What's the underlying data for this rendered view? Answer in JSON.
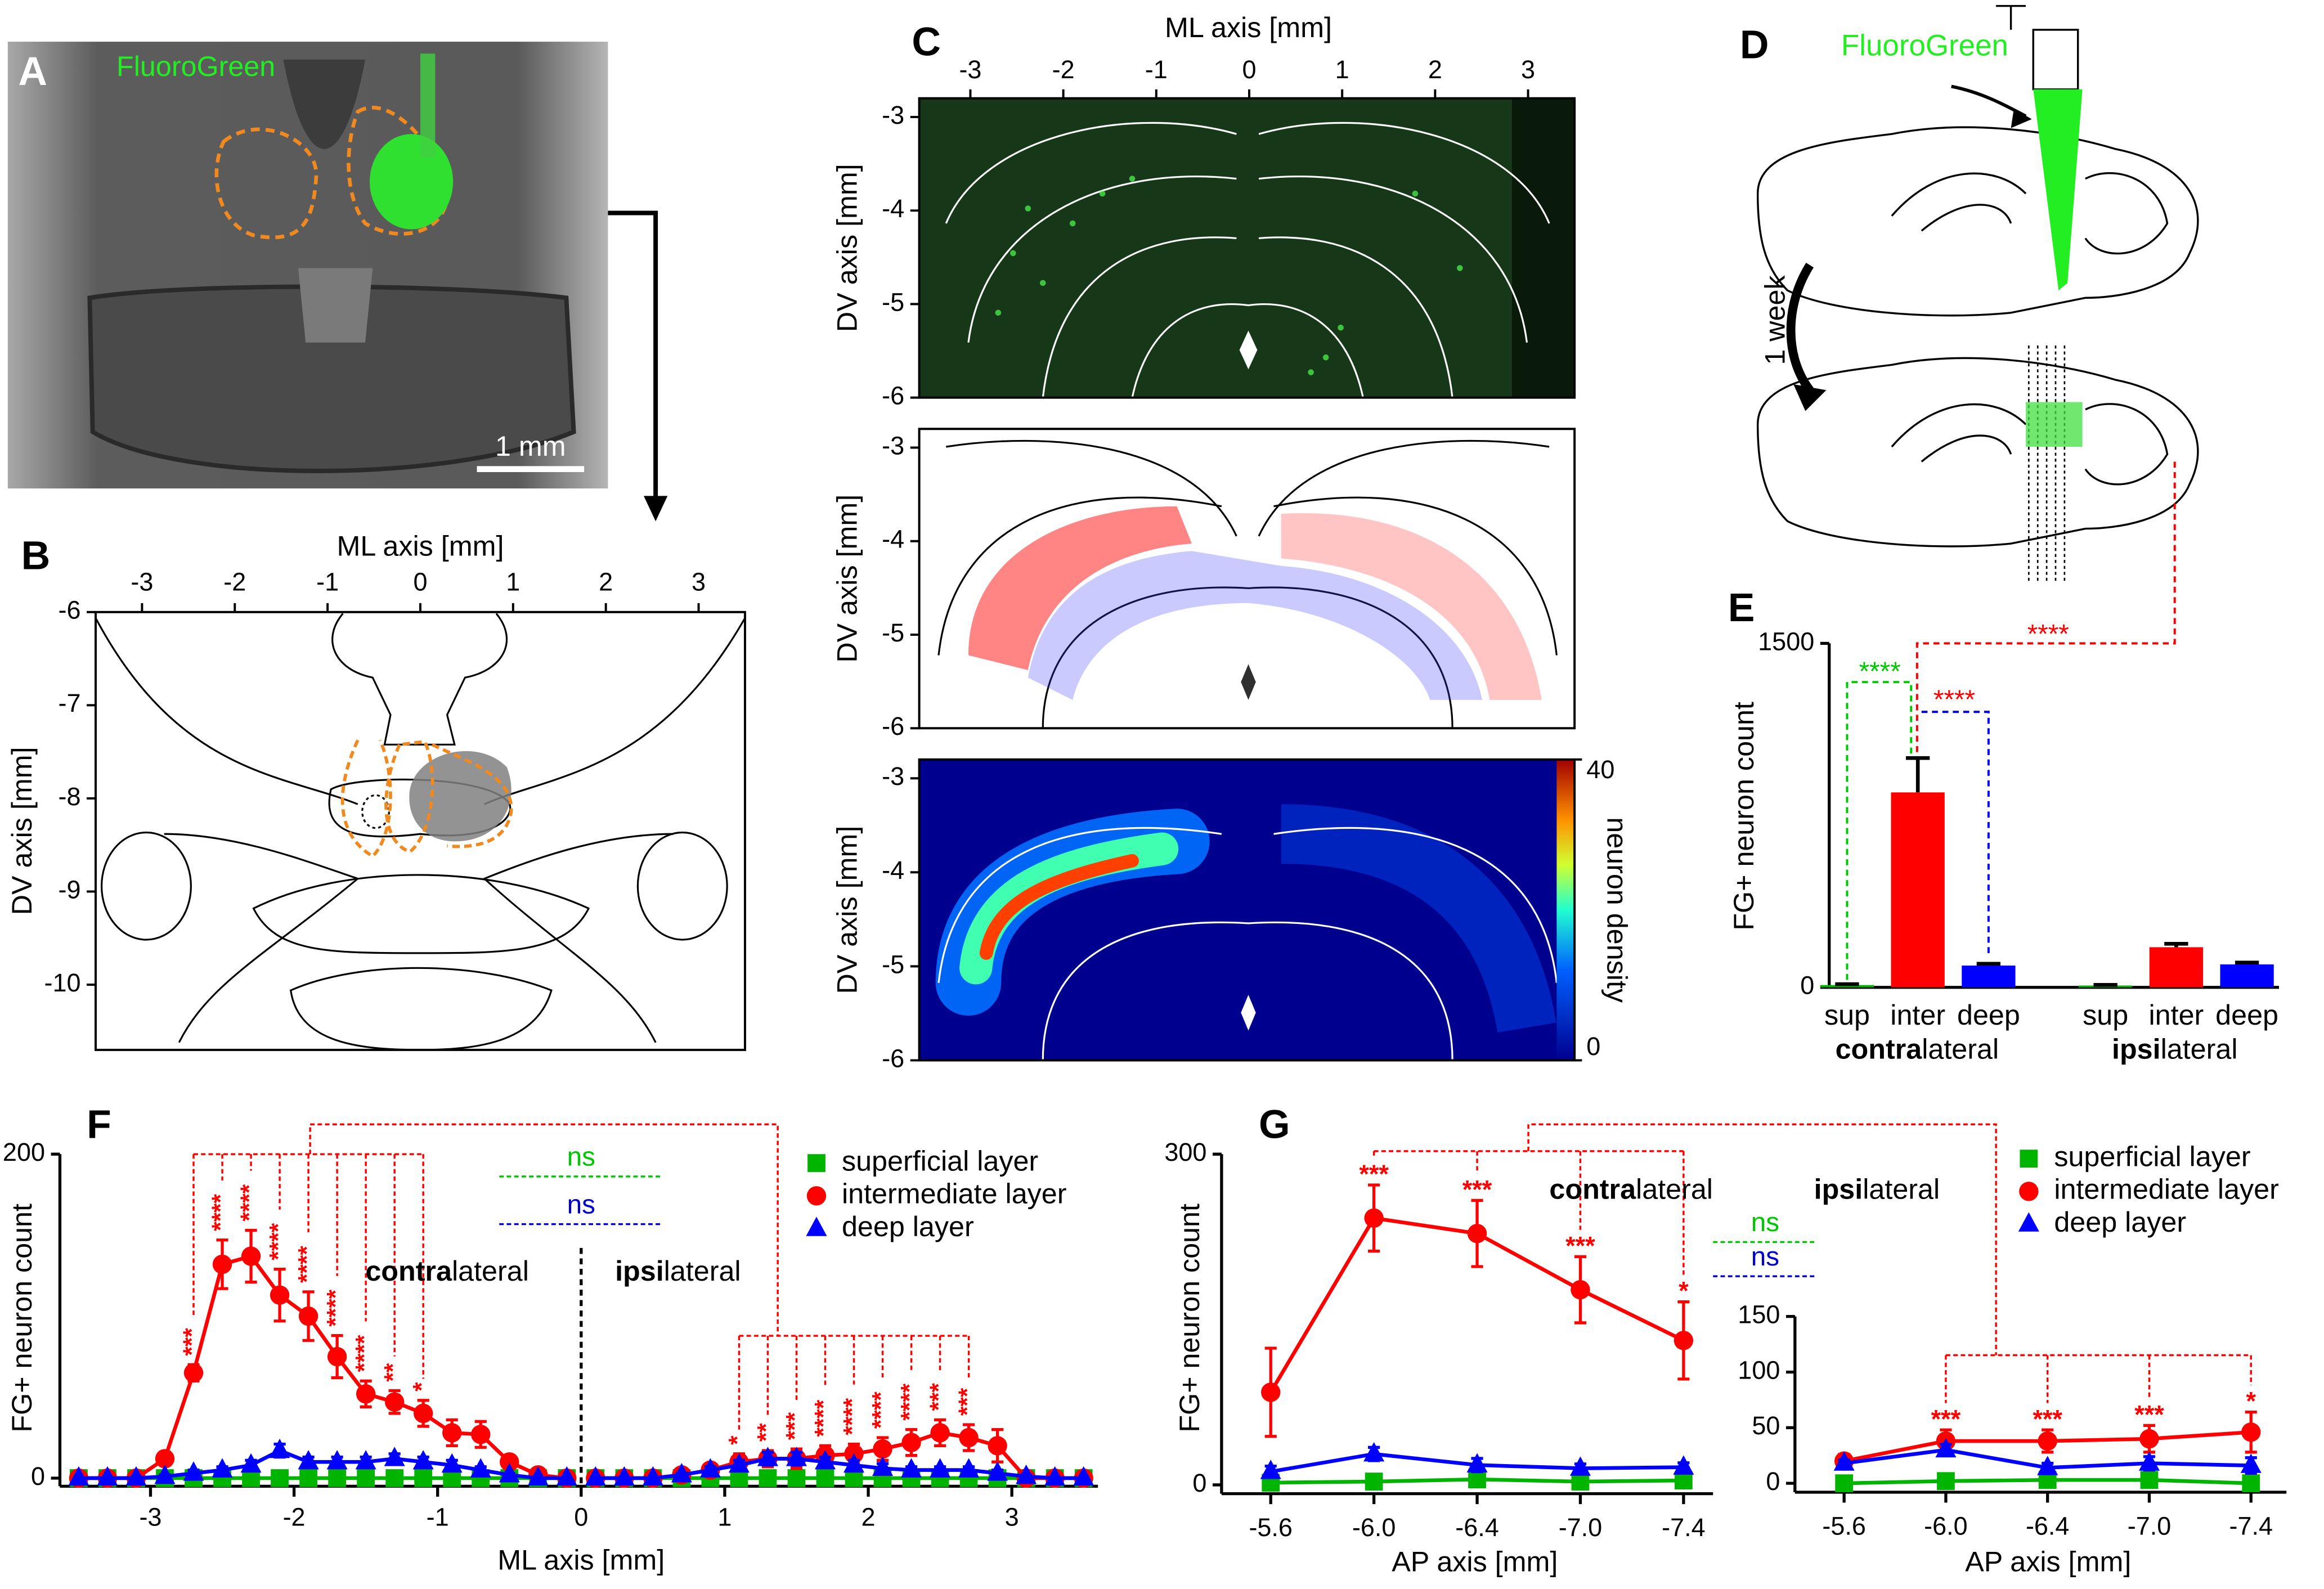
{
  "chart_data": [
    {
      "type": "bar",
      "panel": "E",
      "ylabel": "FG+ neuron count",
      "ylim": [
        0,
        1500
      ],
      "yticks": [
        0,
        1500
      ],
      "categories": [
        "sup",
        "inter",
        "deep",
        "sup",
        "inter",
        "deep"
      ],
      "groups": [
        {
          "bold": "contra",
          "text": "lateral"
        },
        {
          "bold": "ipsi",
          "text": "lateral"
        }
      ],
      "values": [
        10,
        850,
        95,
        8,
        175,
        100
      ],
      "errors": [
        4,
        150,
        8,
        3,
        15,
        8
      ],
      "colors": [
        "#00b400",
        "#ff0000",
        "#0000ff",
        "#00b400",
        "#ff0000",
        "#0000ff"
      ],
      "annotations": [
        {
          "text": "****",
          "color": "#00c800"
        },
        {
          "text": "****",
          "color": "#ff0000"
        },
        {
          "text": "****",
          "color": "#ff0000"
        }
      ]
    },
    {
      "type": "line",
      "panel": "F",
      "xlabel": "ML axis [mm]",
      "ylabel": "FG+ neuron count",
      "xlim": [
        -3.6,
        3.6
      ],
      "xticks": [
        -3,
        -2,
        -1,
        0,
        1,
        2,
        3
      ],
      "ylim": [
        -5,
        200
      ],
      "yticks": [
        0,
        200
      ],
      "x": [
        -3.5,
        -3.3,
        -3.1,
        -2.9,
        -2.7,
        -2.5,
        -2.3,
        -2.1,
        -1.9,
        -1.7,
        -1.5,
        -1.3,
        -1.1,
        -0.9,
        -0.7,
        -0.5,
        -0.3,
        -0.1,
        0.1,
        0.3,
        0.5,
        0.7,
        0.9,
        1.1,
        1.3,
        1.5,
        1.7,
        1.9,
        2.1,
        2.3,
        2.5,
        2.7,
        2.9,
        3.1,
        3.3,
        3.5
      ],
      "series": [
        {
          "name": "superficial layer",
          "color": "#00b400",
          "marker": "square",
          "values": [
            0,
            0,
            0,
            0,
            0,
            0,
            0,
            0,
            0,
            0,
            0,
            0,
            0,
            0,
            0,
            0,
            0,
            0,
            0,
            0,
            0,
            0,
            0,
            0,
            0,
            0,
            0,
            0,
            0,
            0,
            0,
            0,
            0,
            0,
            0,
            0
          ]
        },
        {
          "name": "intermediate layer",
          "color": "#ff0000",
          "marker": "circle",
          "values": [
            0,
            0,
            0,
            12,
            65,
            132,
            137,
            113,
            100,
            75,
            52,
            47,
            40,
            28,
            27,
            10,
            2,
            0,
            0,
            0,
            0,
            2,
            5,
            10,
            12,
            12,
            14,
            15,
            18,
            22,
            28,
            25,
            20,
            0,
            0,
            0
          ],
          "errors": [
            0,
            0,
            0,
            4,
            5,
            15,
            16,
            16,
            15,
            13,
            8,
            7,
            8,
            8,
            8,
            3,
            1,
            0,
            0,
            0,
            0,
            1,
            3,
            5,
            5,
            6,
            6,
            6,
            7,
            8,
            8,
            8,
            10,
            1,
            0,
            0
          ],
          "stars": [
            null,
            null,
            null,
            null,
            "***",
            "****",
            "****",
            "****",
            "****",
            "****",
            "****",
            "**",
            "*",
            null,
            null,
            null,
            null,
            null,
            null,
            null,
            null,
            null,
            null,
            "*",
            "**",
            "***",
            "****",
            "****",
            "****",
            "****",
            "***",
            "***",
            null,
            null,
            null,
            null
          ]
        },
        {
          "name": "deep layer",
          "color": "#0000ff",
          "marker": "triangle",
          "values": [
            0,
            0,
            0,
            1,
            3,
            5,
            8,
            17,
            10,
            10,
            10,
            12,
            10,
            8,
            5,
            2,
            0,
            0,
            0,
            0,
            0,
            2,
            5,
            8,
            12,
            12,
            10,
            8,
            6,
            5,
            5,
            5,
            3,
            1,
            0,
            0
          ],
          "errors": [
            0,
            0,
            0,
            1,
            2,
            2,
            3,
            4,
            3,
            3,
            3,
            3,
            3,
            3,
            2,
            1,
            0,
            0,
            0,
            0,
            0,
            1,
            2,
            3,
            4,
            4,
            3,
            3,
            3,
            2,
            2,
            2,
            2,
            1,
            0,
            0
          ]
        }
      ],
      "regions": [
        {
          "bold": "contra",
          "text": "lateral"
        },
        {
          "bold": "ipsi",
          "text": "lateral"
        }
      ],
      "ns": [
        {
          "text": "ns",
          "color": "#00c800"
        },
        {
          "text": "ns",
          "color": "#0000cc"
        }
      ]
    },
    {
      "type": "line",
      "panel": "G",
      "xlabel": "AP axis [mm]",
      "ylabel": "FG+ neuron count",
      "categories": [
        "-5.6",
        "-6.0",
        "-6.4",
        "-7.0",
        "-7.4"
      ],
      "ylim": [
        -8,
        300
      ],
      "yticks": [
        0,
        300
      ],
      "series": [
        {
          "name": "superficial layer",
          "color": "#00b400",
          "marker": "square",
          "values": [
            2,
            3,
            5,
            3,
            4
          ]
        },
        {
          "name": "intermediate layer",
          "color": "#ff0000",
          "marker": "circle",
          "values": [
            84,
            242,
            228,
            177,
            131
          ],
          "errors": [
            40,
            30,
            30,
            30,
            35
          ],
          "stars": [
            null,
            "***",
            "***",
            "***",
            "*"
          ]
        },
        {
          "name": "deep layer",
          "color": "#0000ff",
          "marker": "triangle",
          "values": [
            12,
            28,
            18,
            15,
            16
          ],
          "errors": [
            5,
            6,
            6,
            4,
            4
          ]
        }
      ],
      "regions": [
        {
          "bold": "contra",
          "text": "lateral"
        },
        {
          "bold": "ipsi",
          "text": "lateral"
        }
      ],
      "ns": [
        {
          "text": "ns",
          "color": "#00c800"
        },
        {
          "text": "ns",
          "color": "#0000cc"
        }
      ]
    },
    {
      "type": "line",
      "xlabel": "AP axis [mm]",
      "categories": [
        "-5.6",
        "-6.0",
        "-6.4",
        "-7.0",
        "-7.4"
      ],
      "ylim": [
        -8,
        150
      ],
      "yticks": [
        0,
        50,
        100,
        150
      ],
      "series": [
        {
          "color": "#00b400",
          "marker": "square",
          "values": [
            0,
            2,
            3,
            3,
            0
          ]
        },
        {
          "color": "#ff0000",
          "marker": "circle",
          "values": [
            20,
            38,
            38,
            40,
            46
          ],
          "errors": [
            6,
            10,
            10,
            12,
            18
          ],
          "stars": [
            null,
            "***",
            "***",
            "***",
            "*"
          ]
        },
        {
          "color": "#0000ff",
          "marker": "triangle",
          "values": [
            18,
            30,
            14,
            18,
            16
          ],
          "errors": [
            3,
            5,
            4,
            6,
            7
          ]
        }
      ]
    },
    {
      "type": "image",
      "panel": "B",
      "xlabel": "ML axis [mm]",
      "xlim": [
        -3.5,
        3.5
      ],
      "xticks": [
        -3,
        -2,
        -1,
        0,
        1,
        2,
        3
      ],
      "rows": [
        {
          "ylabel": "DV axis [mm]",
          "ylim": [
            -6,
            -10.7
          ],
          "yticks": [
            -6,
            -7,
            -8,
            -9,
            -10
          ]
        }
      ]
    },
    {
      "type": "image",
      "panel": "C",
      "xlabel": "ML axis [mm]",
      "xlim": [
        -3.55,
        3.5
      ],
      "xticks": [
        -3,
        -2,
        -1,
        0,
        1,
        2,
        3
      ],
      "rows": [
        {
          "ylabel": "DV axis [mm]",
          "ylim": [
            -2.8,
            -6
          ],
          "yticks": [
            -3,
            -4,
            -5,
            -6
          ]
        },
        {
          "ylabel": "DV axis [mm]",
          "ylim": [
            -2.8,
            -6
          ],
          "yticks": [
            -3,
            -4,
            -5,
            -6
          ]
        },
        {
          "ylabel": "DV axis [mm]",
          "ylim": [
            -2.8,
            -6
          ],
          "yticks": [
            -3,
            -4,
            -5,
            -6
          ]
        }
      ],
      "colorbar": {
        "label": "neuron density",
        "lim": [
          0,
          40
        ],
        "ticks": [
          0,
          40
        ]
      }
    }
  ],
  "panels": {
    "A": {
      "letter": "A",
      "label": "FluoroGreen",
      "scale_bar": "1 mm"
    },
    "D": {
      "letter": "D",
      "label": "FluoroGreen",
      "interval": "1 week"
    }
  }
}
